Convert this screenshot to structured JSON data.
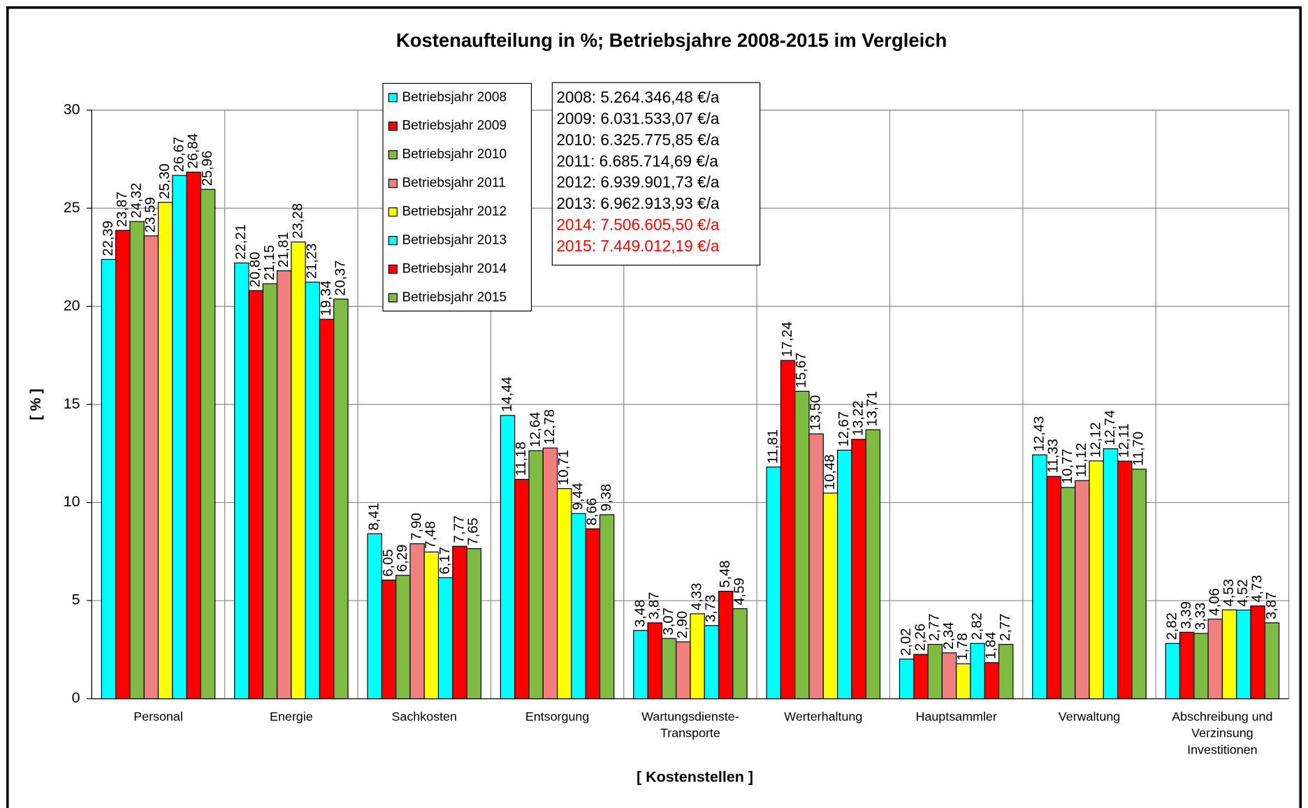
{
  "chart_data": {
    "type": "bar",
    "title": "Kostenaufteilung in %; Betriebsjahre 2008-2015 im Vergleich",
    "x_label": "[ Kostenstellen ]",
    "y_label": "[ % ]",
    "categories": [
      "Personal",
      "Energie",
      "Sachkosten",
      "Entsorgung",
      "Wartungsdienste-\nTransporte",
      "Werterhaltung",
      "Hauptsammler",
      "Verwaltung",
      "Abschreibung und\nVerzinsung\nInvestitionen"
    ],
    "series": [
      {
        "name": "Betriebsjahr 2008",
        "color": "#00ffff",
        "values": [
          22.39,
          22.21,
          8.41,
          14.44,
          3.48,
          11.81,
          2.02,
          12.43,
          2.82
        ],
        "value_labels": [
          "22,39",
          "22,21",
          "8,41",
          "14,44",
          "3,48",
          "11,81",
          "2,02",
          "12,43",
          "2,82"
        ]
      },
      {
        "name": "Betriebsjahr 2009",
        "color": "#ff0000",
        "values": [
          23.87,
          20.8,
          6.05,
          11.18,
          3.87,
          17.24,
          2.26,
          11.33,
          3.39
        ],
        "value_labels": [
          "23,87",
          "20,80",
          "6,05",
          "11,18",
          "3,87",
          "17,24",
          "2,26",
          "11,33",
          "3,39"
        ]
      },
      {
        "name": "Betriebsjahr 2010",
        "color": "#80bb44",
        "values": [
          24.32,
          21.15,
          6.29,
          12.64,
          3.07,
          15.67,
          2.77,
          10.77,
          3.33
        ],
        "value_labels": [
          "24,32",
          "21,15",
          "6,29",
          "12,64",
          "3,07",
          "15,67",
          "2,77",
          "10,77",
          "3,33"
        ]
      },
      {
        "name": "Betriebsjahr 2011",
        "color": "#f08080",
        "values": [
          23.59,
          21.81,
          7.9,
          12.78,
          2.9,
          13.5,
          2.34,
          11.12,
          4.06
        ],
        "value_labels": [
          "23,59",
          "21,81",
          "7,90",
          "12,78",
          "2,90",
          "13,50",
          "2,34",
          "11,12",
          "4,06"
        ]
      },
      {
        "name": "Betriebsjahr 2012",
        "color": "#ffff00",
        "values": [
          25.3,
          23.28,
          7.48,
          10.71,
          4.33,
          10.48,
          1.78,
          12.12,
          4.53
        ],
        "value_labels": [
          "25,30",
          "23,28",
          "7,48",
          "10,71",
          "4,33",
          "10,48",
          "1,78",
          "12,12",
          "4,53"
        ]
      },
      {
        "name": "Betriebsjahr 2013",
        "color": "#00ffff",
        "values": [
          26.67,
          21.23,
          6.17,
          9.44,
          3.73,
          12.67,
          2.82,
          12.74,
          4.52
        ],
        "value_labels": [
          "26,67",
          "21,23",
          "6,17",
          "9,44",
          "3,73",
          "12,67",
          "2,82",
          "12,74",
          "4,52"
        ]
      },
      {
        "name": "Betriebsjahr 2014",
        "color": "#ff0000",
        "values": [
          26.84,
          19.34,
          7.77,
          8.66,
          5.48,
          13.22,
          1.84,
          12.11,
          4.73
        ],
        "value_labels": [
          "26,84",
          "19,34",
          "7,77",
          "8,66",
          "5,48",
          "13,22",
          "1,84",
          "12,11",
          "4,73"
        ]
      },
      {
        "name": "Betriebsjahr 2015",
        "color": "#80bb44",
        "values": [
          25.96,
          20.37,
          7.65,
          9.38,
          4.59,
          13.71,
          2.77,
          11.7,
          3.87
        ],
        "value_labels": [
          "25,96",
          "20,37",
          "7,65",
          "9,38",
          "4,59",
          "13,71",
          "2,77",
          "11,70",
          "3,87"
        ]
      }
    ],
    "ylim": [
      0,
      30
    ],
    "yticks": [
      0,
      5,
      10,
      15,
      20,
      25,
      30
    ],
    "grid": true,
    "annotations": [
      {
        "text": "2008: 5.264.346,48 €/a",
        "color": "#000000"
      },
      {
        "text": "2009: 6.031.533,07 €/a",
        "color": "#000000"
      },
      {
        "text": "2010: 6.325.775,85 €/a",
        "color": "#000000"
      },
      {
        "text": "2011: 6.685.714,69 €/a",
        "color": "#000000"
      },
      {
        "text": "2012: 6.939.901,73 €/a",
        "color": "#000000"
      },
      {
        "text": "2013: 6.962.913,93 €/a",
        "color": "#000000"
      },
      {
        "text": "2014: 7.506.605,50 €/a",
        "color": "#ff0000"
      },
      {
        "text": "2015: 7.449.012,19 €/a",
        "color": "#ff0000"
      }
    ]
  }
}
